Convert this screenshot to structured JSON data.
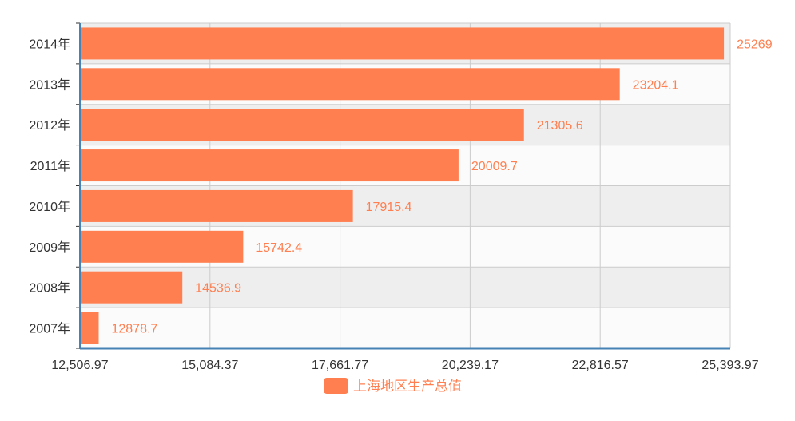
{
  "chart_data": {
    "type": "bar",
    "orientation": "horizontal",
    "categories": [
      "2007年",
      "2008年",
      "2009年",
      "2010年",
      "2011年",
      "2012年",
      "2013年",
      "2014年"
    ],
    "series": [
      {
        "name": "上海地区生产总值",
        "values": [
          12878.7,
          14536.9,
          15742.4,
          17915.4,
          20009.7,
          21305.6,
          23204.1,
          25269
        ]
      }
    ],
    "x_ticks": [
      "12,506.97",
      "15,084.37",
      "17,661.77",
      "20,239.17",
      "22,816.57",
      "25,393.97"
    ],
    "xlim": [
      12506.97,
      25393.97
    ],
    "grid": true,
    "legend_position": "bottom",
    "colors": {
      "bar": "#ff7f50",
      "label": "#ff7f50",
      "band_dark": "#eeeeee",
      "band_light": "#fbfbfb",
      "grid": "#cccccc",
      "axis": "#4682b4"
    }
  }
}
